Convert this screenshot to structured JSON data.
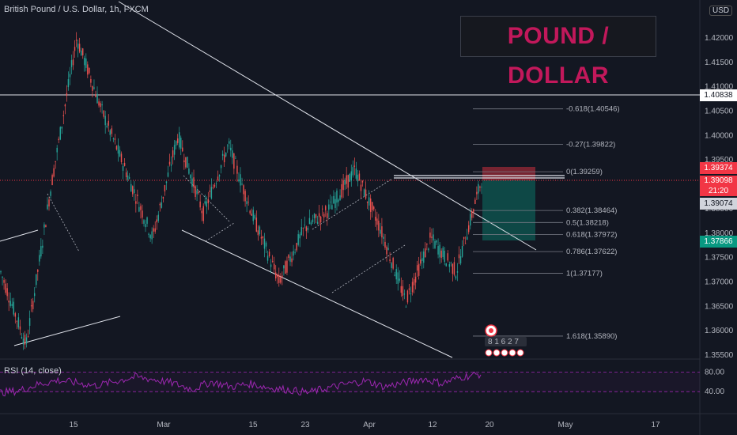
{
  "header": {
    "title": "British Pound / U.S. Dollar, 1h, FXCM",
    "banner": "POUND / DOLLAR",
    "currency": "USD"
  },
  "rsi": {
    "label": "RSI (14, close)",
    "levels": [
      80.0,
      40.0
    ],
    "level_labels": [
      "80.00",
      "40.00"
    ]
  },
  "price_tags": {
    "resistance": "1.40838",
    "target": "1.39374",
    "current": "1.39098",
    "countdown": "21:20",
    "grey": "1.39074",
    "stop": "1.37866"
  },
  "fib_levels": [
    {
      "ratio": "-0.618",
      "price": 1.40546,
      "label": "-0.618(1.40546)"
    },
    {
      "ratio": "-0.27",
      "price": 1.39822,
      "label": "-0.27(1.39822)"
    },
    {
      "ratio": "0",
      "price": 1.39259,
      "label": "0(1.39259)"
    },
    {
      "ratio": "0.382",
      "price": 1.38464,
      "label": "0.382(1.38464)"
    },
    {
      "ratio": "0.5",
      "price": 1.38218,
      "label": "0.5(1.38218)"
    },
    {
      "ratio": "0.618",
      "price": 1.37972,
      "label": "0.618(1.37972)"
    },
    {
      "ratio": "0.786",
      "price": 1.37622,
      "label": "0.786(1.37622)"
    },
    {
      "ratio": "1",
      "price": 1.37177,
      "label": "1(1.37177)"
    },
    {
      "ratio": "1.618",
      "price": 1.3589,
      "label": "1.618(1.35890)"
    }
  ],
  "event_marker": "8 1 6 2 7",
  "colors": {
    "background": "#131722",
    "up": "#26a69a",
    "down": "#ef5350",
    "banner_text": "#c2185b",
    "rsi": "#9c27b0",
    "target_zone": "#f23645",
    "stop_zone": "#089981"
  },
  "chart_data": {
    "type": "candlestick",
    "symbol": "GBPUSD",
    "timeframe": "1h",
    "y_axis": {
      "ticks": [
        1.42,
        1.415,
        1.41,
        1.405,
        1.4,
        1.395,
        1.39,
        1.385,
        1.38,
        1.375,
        1.37,
        1.365,
        1.36,
        1.355
      ],
      "tick_labels": [
        "1.42000",
        "1.41500",
        "1.41000",
        "1.40500",
        "1.40000",
        "1.39500",
        "1.39000",
        "1.38500",
        "1.38000",
        "1.37500",
        "1.37000",
        "1.36500",
        "1.36000",
        "1.35500"
      ],
      "range": [
        1.3545,
        1.4235
      ]
    },
    "x_axis": {
      "tick_labels": [
        "15",
        "Mar",
        "15",
        "23",
        "Apr",
        "12",
        "20",
        "May",
        "17"
      ]
    },
    "key_points": [
      {
        "date": "Feb 9",
        "close": 1.372
      },
      {
        "date": "Feb 11",
        "close": 1.357
      },
      {
        "date": "Feb 17",
        "close": 1.39
      },
      {
        "date": "Feb 24",
        "close": 1.42
      },
      {
        "date": "Feb 26",
        "close": 1.405
      },
      {
        "date": "Mar 1",
        "close": 1.392
      },
      {
        "date": "Mar 8",
        "close": 1.379
      },
      {
        "date": "Mar 11",
        "close": 1.4
      },
      {
        "date": "Mar 15",
        "close": 1.384
      },
      {
        "date": "Mar 18",
        "close": 1.398
      },
      {
        "date": "Mar 22",
        "close": 1.383
      },
      {
        "date": "Mar 24",
        "close": 1.37
      },
      {
        "date": "Mar 29",
        "close": 1.381
      },
      {
        "date": "Apr 1",
        "close": 1.385
      },
      {
        "date": "Apr 5",
        "close": 1.393
      },
      {
        "date": "Apr 7",
        "close": 1.381
      },
      {
        "date": "Apr 12",
        "close": 1.366
      },
      {
        "date": "Apr 15",
        "close": 1.379
      },
      {
        "date": "Apr 16",
        "close": 1.372
      },
      {
        "date": "Apr 19",
        "close": 1.391
      }
    ],
    "rsi_values": [
      38,
      42,
      55,
      63,
      58,
      52,
      61,
      70,
      65,
      57,
      45,
      60,
      50,
      56,
      48,
      44,
      38,
      47,
      55,
      62,
      50,
      58,
      66,
      57,
      70,
      76
    ]
  }
}
